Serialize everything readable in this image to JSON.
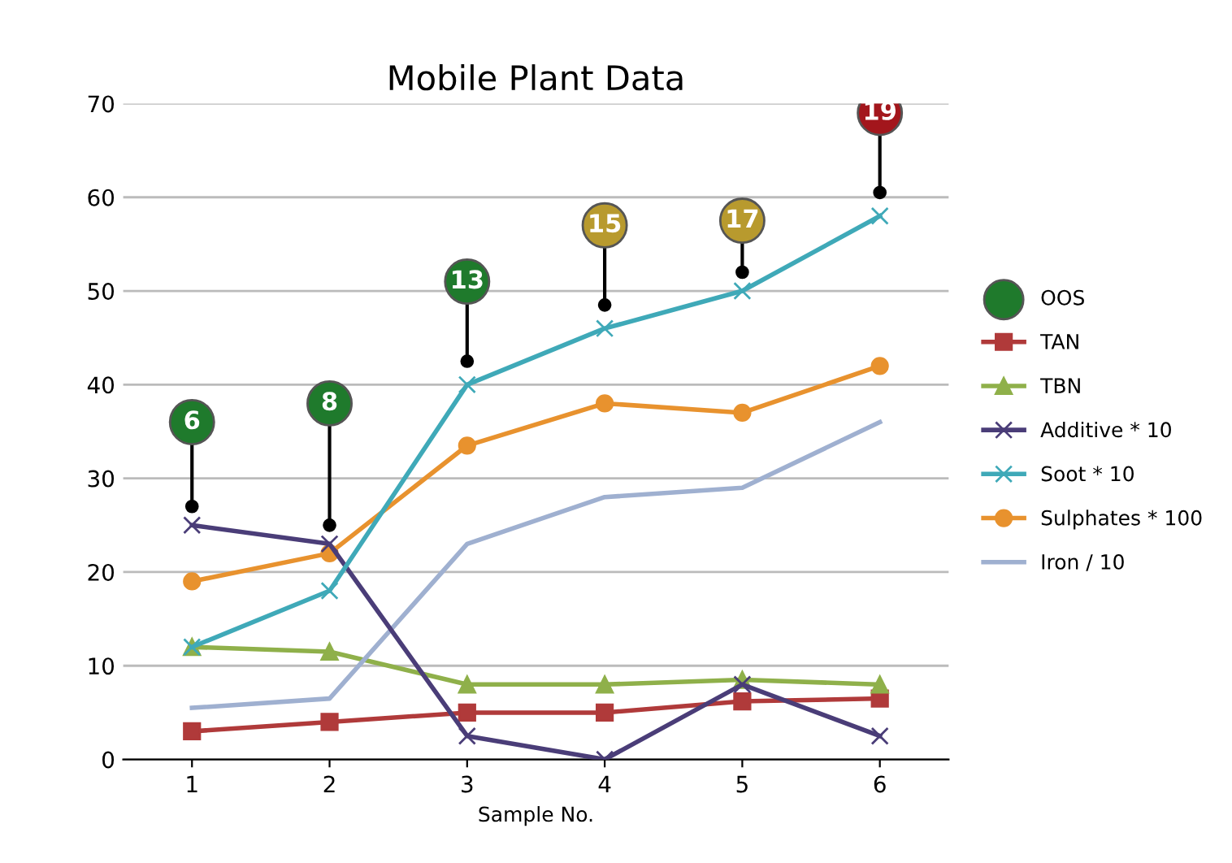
{
  "chart_data": {
    "type": "line",
    "title": "Mobile Plant Data",
    "xlabel": "Sample No.",
    "categories": [
      "1",
      "2",
      "3",
      "4",
      "5",
      "6"
    ],
    "ylim": [
      0,
      70
    ],
    "yticks": [
      0,
      10,
      20,
      30,
      40,
      50,
      60,
      70
    ],
    "grid": "y",
    "legend": "right",
    "series": [
      {
        "name": "OOS",
        "type": "scatter",
        "marker": "circle",
        "color": "#1f7a2c",
        "colors": [
          "#1f7a2c",
          "#1f7a2c",
          "#1f7a2c",
          "#b89a2e",
          "#b89a2e",
          "#a3161c"
        ],
        "values": [
          36,
          38,
          51,
          57,
          57.5,
          69
        ]
      },
      {
        "name": "TAN",
        "marker": "square",
        "color": "#b03a3a",
        "values": [
          3,
          4,
          5,
          5,
          6.2,
          6.5
        ]
      },
      {
        "name": "TBN",
        "marker": "triangle",
        "color": "#8fb04a",
        "values": [
          12,
          11.5,
          8,
          8,
          8.5,
          8
        ]
      },
      {
        "name": "Additive * 10",
        "marker": "cross",
        "color": "#4a3d78",
        "values": [
          25,
          23,
          2.5,
          0,
          8,
          2.5
        ]
      },
      {
        "name": "Soot * 10",
        "marker": "cross",
        "color": "#3fa9b8",
        "values": [
          12,
          18,
          40,
          46,
          50,
          58
        ]
      },
      {
        "name": "Sulphates * 100",
        "marker": "circle",
        "color": "#e8922e",
        "values": [
          19,
          22,
          33.5,
          38,
          37,
          42
        ]
      },
      {
        "name": "Iron / 10",
        "marker": "none",
        "color": "#9fb0d0",
        "values": [
          5.5,
          6.5,
          23,
          28,
          29,
          36
        ]
      }
    ],
    "annotations": [
      {
        "text": "6",
        "x": "1",
        "y": 27
      },
      {
        "text": "8",
        "x": "2",
        "y": 25
      },
      {
        "text": "13",
        "x": "3",
        "y": 42.5
      },
      {
        "text": "15",
        "x": "4",
        "y": 48.5
      },
      {
        "text": "17",
        "x": "5",
        "y": 52
      },
      {
        "text": "19",
        "x": "6",
        "y": 60.5
      }
    ]
  }
}
